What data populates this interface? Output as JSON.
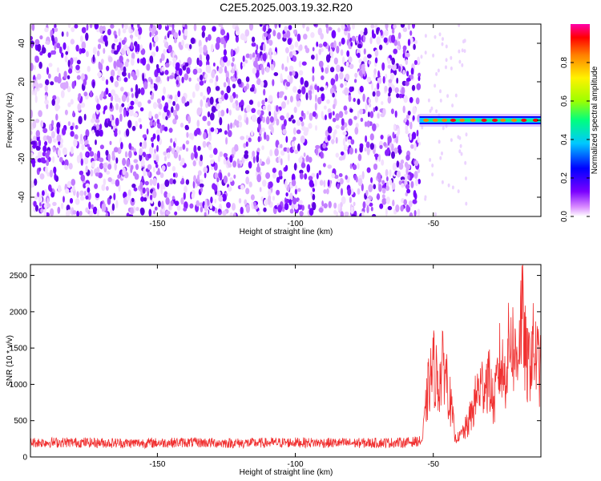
{
  "title": "C2E5.2025.003.19.32.R20",
  "chart_data": [
    {
      "type": "heatmap",
      "xlabel": "Height of straight line (km)",
      "ylabel": "Frequency (Hz)",
      "xlim": [
        -196,
        -11
      ],
      "ylim": [
        -50,
        50
      ],
      "x_ticks": [
        -150,
        -100,
        -50
      ],
      "y_ticks": [
        -40,
        -20,
        0,
        20,
        40
      ],
      "grid": false,
      "noise_region_x": [
        -196,
        -55
      ],
      "signal_band": {
        "x_start": -55,
        "x_end": -11,
        "frequency_hz": 0
      },
      "colorbar": {
        "label": "Normalized spectral amplitude",
        "range": [
          0,
          1
        ],
        "ticks": [
          0.0,
          0.2,
          0.4,
          0.6,
          0.8
        ],
        "colors": [
          "#ffffff",
          "#d98bff",
          "#7a00ff",
          "#0000ff",
          "#00c8ff",
          "#00ff7f",
          "#9cff00",
          "#fff200",
          "#ff7f00",
          "#ff0000",
          "#ff00aa"
        ]
      }
    },
    {
      "type": "line",
      "xlabel": "Height of straight line (km)",
      "ylabel": "SNR (10 * v/v)",
      "xlim": [
        -196,
        -11
      ],
      "ylim": [
        0,
        2650
      ],
      "x_ticks": [
        -150,
        -100,
        -50
      ],
      "y_ticks": [
        0,
        500,
        1000,
        1500,
        2000,
        2500
      ],
      "grid": false,
      "color": "#f03030",
      "series": [
        {
          "x": [
            -196,
            -180,
            -160,
            -140,
            -120,
            -100,
            -80,
            -60,
            -54,
            -52,
            -50,
            -48,
            -46,
            -44,
            -42,
            -40,
            -38,
            -36,
            -34,
            -32,
            -30,
            -28,
            -26,
            -24,
            -22,
            -20,
            -18,
            -16,
            -14,
            -12,
            -11
          ],
          "values": [
            200,
            200,
            190,
            200,
            190,
            200,
            190,
            200,
            220,
            900,
            1250,
            1000,
            1300,
            800,
            250,
            300,
            400,
            600,
            900,
            1000,
            1100,
            700,
            1300,
            1100,
            1700,
            1300,
            2000,
            1200,
            1500,
            1300,
            1150
          ]
        }
      ]
    }
  ]
}
